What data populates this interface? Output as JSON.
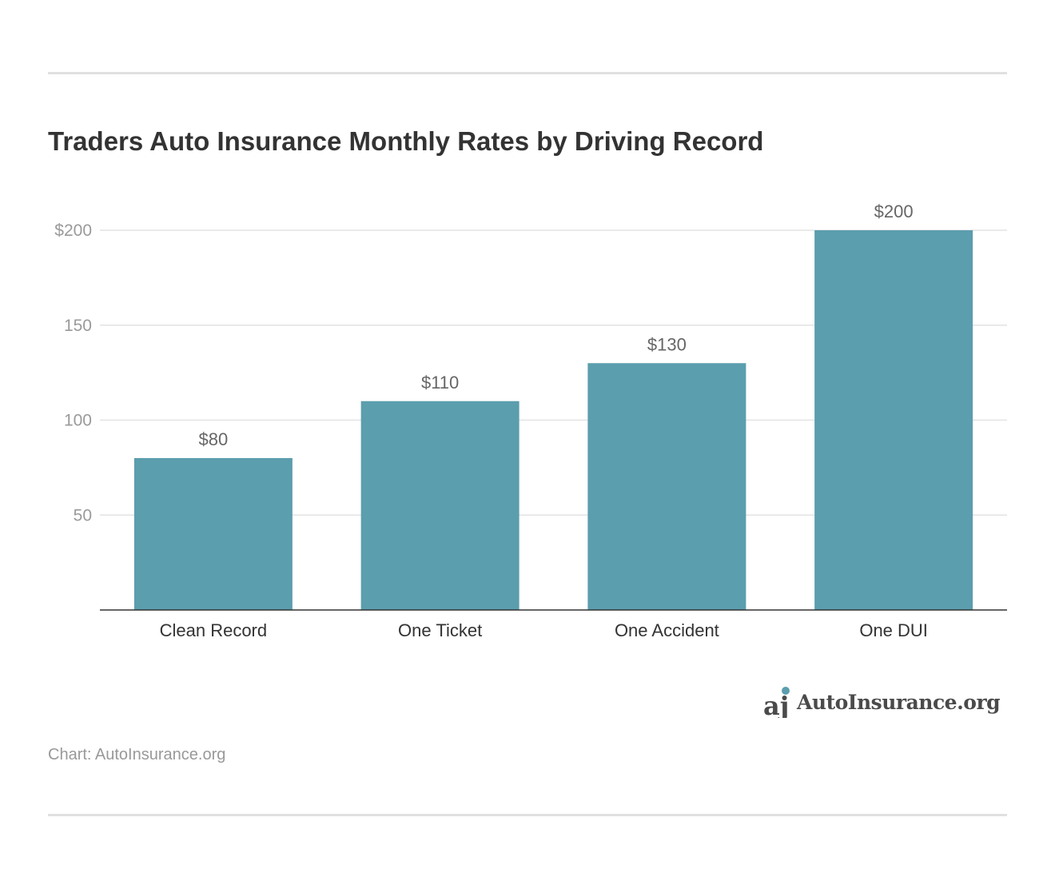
{
  "chart_data": {
    "type": "bar",
    "title": "Traders Auto Insurance Monthly Rates by Driving Record",
    "categories": [
      "Clean Record",
      "One Ticket",
      "One Accident",
      "One DUI"
    ],
    "values": [
      80,
      110,
      130,
      200
    ],
    "data_labels": [
      "$80",
      "$110",
      "$130",
      "$200"
    ],
    "yticks": [
      50,
      100,
      150,
      200
    ],
    "ytick_labels": [
      "50",
      "100",
      "150",
      "$200"
    ],
    "ylim": [
      0,
      200
    ],
    "xlabel": "",
    "ylabel": "",
    "grid": true,
    "bar_color": "#5b9eae"
  },
  "source": "Chart: AutoInsurance.org",
  "logo": {
    "text": "AutoInsurance.org",
    "accent": "#5b9eae"
  }
}
